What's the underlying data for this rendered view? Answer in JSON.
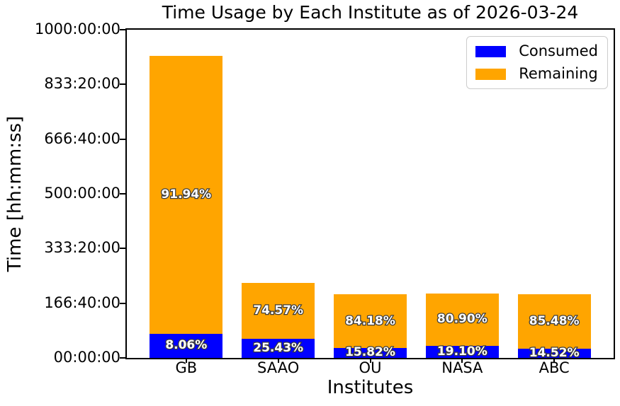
{
  "title": "Time Usage by Each Institute as of 2026-03-24",
  "chart_data": {
    "type": "bar",
    "stacked": true,
    "title": "Time Usage by Each Institute as of 2026-03-24",
    "xlabel": "Institutes",
    "ylabel": "Time [hh:mm:ss]",
    "categories": [
      "GB",
      "SAAO",
      "OU",
      "NASA",
      "ABC"
    ],
    "totals_hours_est": [
      920,
      228,
      193,
      197,
      193
    ],
    "series": [
      {
        "name": "Consumed",
        "color": "#0000ff",
        "pct": [
          8.06,
          25.43,
          15.82,
          19.1,
          14.52
        ],
        "labels": [
          "8.06%",
          "25.43%",
          "15.82%",
          "19.10%",
          "14.52%"
        ]
      },
      {
        "name": "Remaining",
        "color": "#ffa500",
        "pct": [
          91.94,
          74.57,
          84.18,
          80.9,
          85.48
        ],
        "labels": [
          "91.94%",
          "74.57%",
          "84.18%",
          "80.90%",
          "85.48%"
        ]
      }
    ],
    "ylim": [
      0,
      1000
    ],
    "yticks": [
      "00:00:00",
      "166:40:00",
      "333:20:00",
      "500:00:00",
      "666:40:00",
      "833:20:00",
      "1000:00:00"
    ],
    "grid": false,
    "legend_position": "upper right"
  }
}
